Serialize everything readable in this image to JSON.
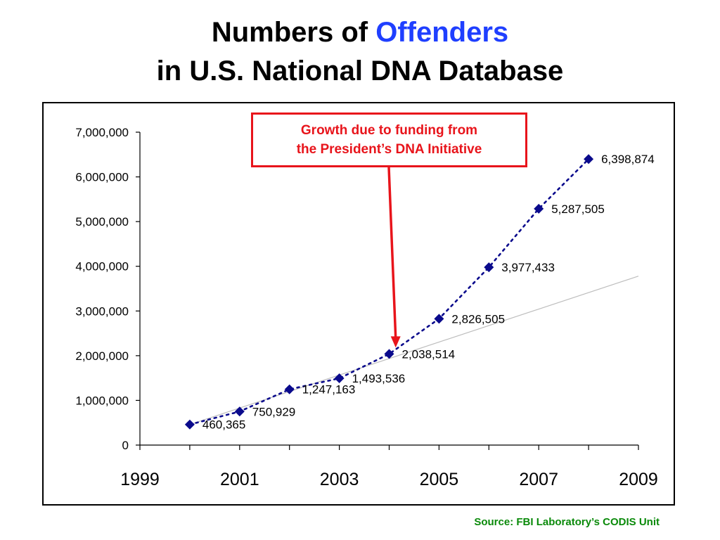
{
  "title": {
    "line1_prefix": "Numbers of ",
    "line1_accent": "Offenders",
    "line2": "in U.S. National DNA Database"
  },
  "callout": {
    "line1": "Growth due to funding from",
    "line2": "the President’s DNA Initiative"
  },
  "source": "Source: FBI Laboratory’s CODIS Unit",
  "colors": {
    "series": "#0a0a8c",
    "trend": "#bdbdbd",
    "callout": "#e8141b",
    "accent": "#1f3fff",
    "source": "#0a8a0a"
  },
  "chart_data": {
    "type": "line",
    "title": "Numbers of Offenders in U.S. National DNA Database",
    "xlabel": "",
    "ylabel": "",
    "xlim": [
      1999,
      2009
    ],
    "ylim": [
      0,
      7000000
    ],
    "xticks": [
      1999,
      2001,
      2003,
      2005,
      2007,
      2009
    ],
    "yticks": [
      0,
      1000000,
      2000000,
      3000000,
      4000000,
      5000000,
      6000000,
      7000000
    ],
    "ytick_labels": [
      "0",
      "1,000,000",
      "2,000,000",
      "3,000,000",
      "4,000,000",
      "5,000,000",
      "6,000,000",
      "7,000,000"
    ],
    "grid": false,
    "legend": "none",
    "series": [
      {
        "x": [
          2000,
          2001,
          2002,
          2003,
          2004,
          2005,
          2006,
          2007,
          2008
        ],
        "values": [
          460365,
          750929,
          1247163,
          1493536,
          2038514,
          2826505,
          3977433,
          5287505,
          6398874
        ],
        "labels": [
          "460,365",
          "750,929",
          "1,247,163",
          "1,493,536",
          "2,038,514",
          "2,826,505",
          "3,977,433",
          "5,287,505",
          "6,398,874"
        ],
        "marker": "diamond",
        "line": "dotted"
      }
    ],
    "trend_line": {
      "x": [
        2000,
        2009
      ],
      "values": [
        460000,
        3780000
      ]
    },
    "annotation_arrow": {
      "text": "Growth due to funding from the President’s DNA Initiative",
      "x": 2004.13,
      "y": 2180000
    }
  }
}
